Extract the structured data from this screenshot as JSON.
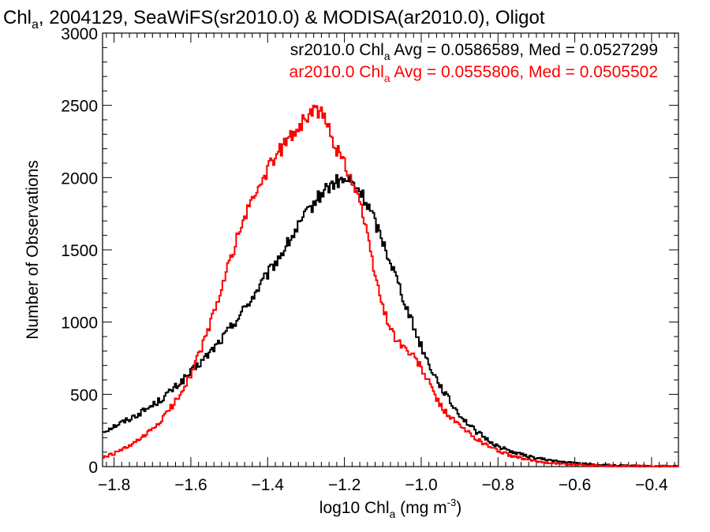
{
  "chart_data": {
    "type": "line",
    "title": {
      "pre": "Chl",
      "sub": "a",
      "post": ", 2004129, SeaWiFS(sr2010.0) & MODISA(ar2010.0), Oligot"
    },
    "xlabel": {
      "pre": "log10 Chl",
      "sub": "a",
      "mid": " (mg m",
      "sup": "-3",
      "post": ")"
    },
    "ylabel": "Number of Observations",
    "xlim": [
      -1.83,
      -0.33
    ],
    "ylim": [
      0,
      3000
    ],
    "x_major_ticks": [
      -1.8,
      -1.6,
      -1.4,
      -1.2,
      -1.0,
      -0.8,
      -0.6,
      -0.4
    ],
    "x_tick_labels": [
      "−1.8",
      "−1.6",
      "−1.4",
      "−1.2",
      "−1.0",
      "−0.8",
      "−0.6",
      "−0.4"
    ],
    "y_major_ticks": [
      0,
      500,
      1000,
      1500,
      2000,
      2500,
      3000
    ],
    "y_tick_labels": [
      "0",
      "500",
      "1000",
      "1500",
      "2000",
      "2500",
      "3000"
    ],
    "grid": false,
    "legend_position": "top-right",
    "annotations": [
      {
        "pre": "sr2010.0 Chl",
        "sub": "a",
        "post": " Avg = 0.0586589, Med = 0.0527299",
        "color": "#000000"
      },
      {
        "pre": "ar2010.0 Chl",
        "sub": "a",
        "post": " Avg = 0.0555806, Med = 0.0505502",
        "color": "#ff0000"
      }
    ],
    "series": [
      {
        "color": "#000000",
        "points": [
          [
            -1.83,
            240
          ],
          [
            -1.8,
            280
          ],
          [
            -1.76,
            330
          ],
          [
            -1.72,
            390
          ],
          [
            -1.68,
            460
          ],
          [
            -1.64,
            550
          ],
          [
            -1.6,
            650
          ],
          [
            -1.56,
            760
          ],
          [
            -1.52,
            880
          ],
          [
            -1.48,
            1020
          ],
          [
            -1.44,
            1170
          ],
          [
            -1.4,
            1330
          ],
          [
            -1.36,
            1490
          ],
          [
            -1.32,
            1660
          ],
          [
            -1.28,
            1820
          ],
          [
            -1.25,
            1920
          ],
          [
            -1.22,
            1970
          ],
          [
            -1.19,
            1980
          ],
          [
            -1.16,
            1910
          ],
          [
            -1.13,
            1760
          ],
          [
            -1.1,
            1560
          ],
          [
            -1.07,
            1350
          ],
          [
            -1.04,
            1120
          ],
          [
            -1.01,
            900
          ],
          [
            -0.98,
            710
          ],
          [
            -0.95,
            560
          ],
          [
            -0.92,
            430
          ],
          [
            -0.89,
            330
          ],
          [
            -0.86,
            250
          ],
          [
            -0.83,
            190
          ],
          [
            -0.8,
            140
          ],
          [
            -0.76,
            100
          ],
          [
            -0.72,
            70
          ],
          [
            -0.68,
            50
          ],
          [
            -0.64,
            35
          ],
          [
            -0.6,
            25
          ],
          [
            -0.56,
            16
          ],
          [
            -0.52,
            10
          ],
          [
            -0.48,
            6
          ],
          [
            -0.44,
            4
          ],
          [
            -0.4,
            2
          ],
          [
            -0.36,
            1
          ],
          [
            -0.33,
            1
          ]
        ]
      },
      {
        "color": "#ff0000",
        "points": [
          [
            -1.83,
            60
          ],
          [
            -1.8,
            90
          ],
          [
            -1.76,
            140
          ],
          [
            -1.72,
            210
          ],
          [
            -1.68,
            310
          ],
          [
            -1.64,
            450
          ],
          [
            -1.6,
            640
          ],
          [
            -1.56,
            900
          ],
          [
            -1.52,
            1230
          ],
          [
            -1.48,
            1580
          ],
          [
            -1.44,
            1850
          ],
          [
            -1.4,
            2050
          ],
          [
            -1.36,
            2220
          ],
          [
            -1.32,
            2350
          ],
          [
            -1.29,
            2440
          ],
          [
            -1.27,
            2470
          ],
          [
            -1.25,
            2400
          ],
          [
            -1.22,
            2200
          ],
          [
            -1.19,
            2050
          ],
          [
            -1.16,
            1850
          ],
          [
            -1.13,
            1450
          ],
          [
            -1.1,
            1100
          ],
          [
            -1.07,
            900
          ],
          [
            -1.04,
            810
          ],
          [
            -1.01,
            730
          ],
          [
            -0.98,
            580
          ],
          [
            -0.95,
            420
          ],
          [
            -0.92,
            330
          ],
          [
            -0.89,
            260
          ],
          [
            -0.86,
            200
          ],
          [
            -0.83,
            150
          ],
          [
            -0.8,
            110
          ],
          [
            -0.76,
            70
          ],
          [
            -0.72,
            45
          ],
          [
            -0.68,
            30
          ],
          [
            -0.64,
            20
          ],
          [
            -0.6,
            14
          ],
          [
            -0.56,
            9
          ],
          [
            -0.52,
            6
          ],
          [
            -0.48,
            4
          ],
          [
            -0.44,
            3
          ],
          [
            -0.4,
            2
          ],
          [
            -0.36,
            1
          ],
          [
            -0.33,
            1
          ]
        ]
      }
    ]
  }
}
